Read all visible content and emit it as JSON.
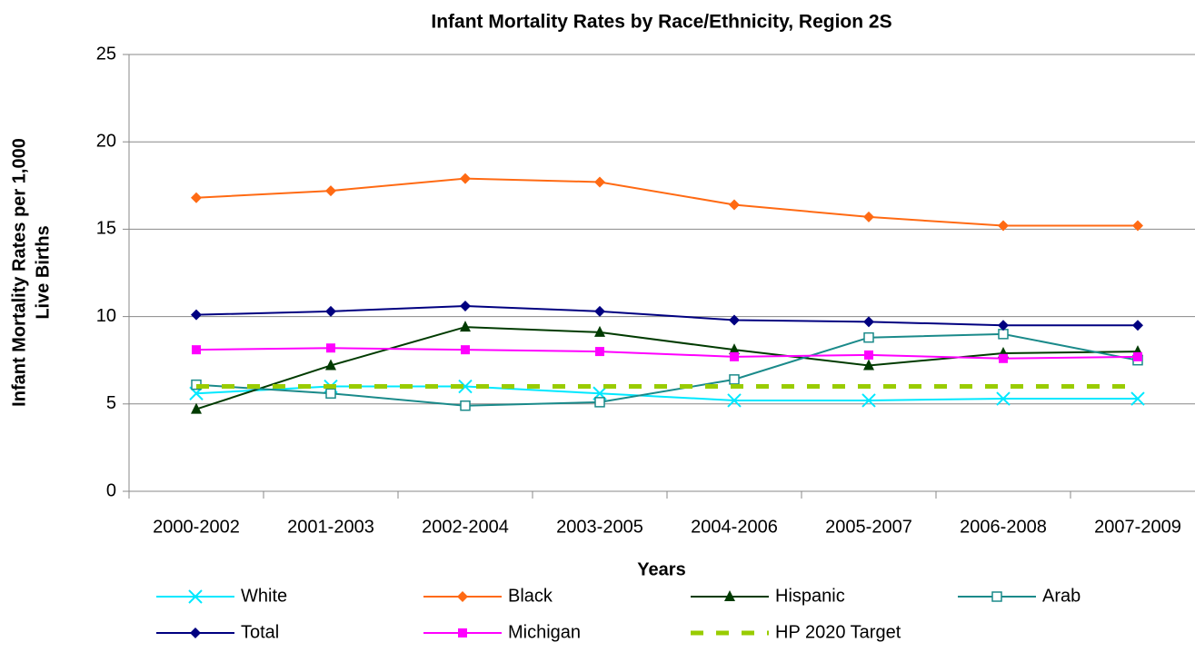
{
  "chart_data": {
    "type": "line",
    "title": "Infant Mortality Rates by Race/Ethnicity, Region 2S",
    "xlabel": "Years",
    "ylabel": [
      "Infant Mortality Rates per 1,000",
      "Live Births"
    ],
    "categories": [
      "2000-2002",
      "2001-2003",
      "2002-2004",
      "2003-2005",
      "2004-2006",
      "2005-2007",
      "2006-2008",
      "2007-2009"
    ],
    "ylim": [
      0,
      25
    ],
    "yticks": [
      0,
      5,
      10,
      15,
      20,
      25
    ],
    "grid": true,
    "series": [
      {
        "name": "White",
        "color": "#00e8ff",
        "marker": "x",
        "values": [
          5.6,
          6.0,
          6.0,
          5.6,
          5.2,
          5.2,
          5.3,
          5.3
        ]
      },
      {
        "name": "Black",
        "color": "#ff6a13",
        "marker": "diamond",
        "values": [
          16.8,
          17.2,
          17.9,
          17.7,
          16.4,
          15.7,
          15.2,
          15.2
        ]
      },
      {
        "name": "Hispanic",
        "color": "#003b00",
        "marker": "triangle",
        "values": [
          4.7,
          7.2,
          9.4,
          9.1,
          8.1,
          7.2,
          7.9,
          8.0
        ]
      },
      {
        "name": "Arab",
        "color": "#1a8a8a",
        "marker": "square-open",
        "values": [
          6.1,
          5.6,
          4.9,
          5.1,
          6.4,
          8.8,
          9.0,
          7.5
        ]
      },
      {
        "name": "Total",
        "color": "#000080",
        "marker": "diamond",
        "values": [
          10.1,
          10.3,
          10.6,
          10.3,
          9.8,
          9.7,
          9.5,
          9.5
        ]
      },
      {
        "name": "Michigan",
        "color": "#ff00ff",
        "marker": "square",
        "values": [
          8.1,
          8.2,
          8.1,
          8.0,
          7.7,
          7.8,
          7.6,
          7.7
        ]
      },
      {
        "name": "HP 2020 Target",
        "color": "#99cc00",
        "marker": "none",
        "dashed": true,
        "values": [
          6.0,
          6.0,
          6.0,
          6.0,
          6.0,
          6.0,
          6.0,
          6.0
        ]
      }
    ]
  }
}
